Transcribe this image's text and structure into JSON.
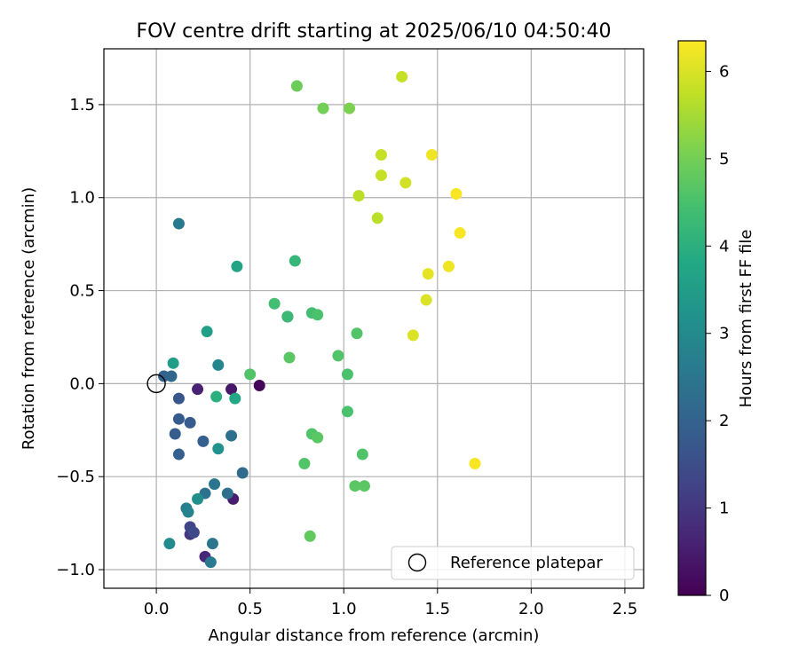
{
  "chart_data": {
    "type": "scatter",
    "title": "FOV centre drift starting at 2025/06/10 04:50:40",
    "xlabel": "Angular distance from reference (arcmin)",
    "ylabel": "Rotation from reference (arcmin)",
    "xlim": [
      -0.28,
      2.6
    ],
    "ylim": [
      -1.1,
      1.8
    ],
    "xticks": [
      0.0,
      0.5,
      1.0,
      1.5,
      2.0,
      2.5
    ],
    "xtick_labels": [
      "0.0",
      "0.5",
      "1.0",
      "1.5",
      "2.0",
      "2.5"
    ],
    "yticks": [
      -1.0,
      -0.5,
      0.0,
      0.5,
      1.0,
      1.5
    ],
    "ytick_labels": [
      "−1.0",
      "−0.5",
      "0.0",
      "0.5",
      "1.0",
      "1.5"
    ],
    "grid": true,
    "colorbar": {
      "label": "Hours from first FF file",
      "colormap": "viridis",
      "range": [
        0,
        6.35
      ],
      "ticks": [
        0,
        1,
        2,
        3,
        4,
        5,
        6
      ],
      "tick_labels": [
        "0",
        "1",
        "2",
        "3",
        "4",
        "5",
        "6"
      ]
    },
    "reference": {
      "name": "Reference platepar",
      "x": 0.0,
      "y": 0.0
    },
    "legend": {
      "position": "lower-right",
      "entries": [
        "Reference platepar"
      ]
    },
    "series": [
      {
        "points": [
          {
            "x": 0.7,
            "y": 0.36,
            "c": 0.05
          },
          {
            "x": 0.55,
            "y": -0.01,
            "c": 0.1
          },
          {
            "x": 0.4,
            "y": -0.03,
            "c": 0.4
          },
          {
            "x": 0.41,
            "y": -0.62,
            "c": 0.5
          },
          {
            "x": 0.22,
            "y": -0.03,
            "c": 0.6
          },
          {
            "x": 0.26,
            "y": -0.93,
            "c": 0.7
          },
          {
            "x": 0.18,
            "y": -0.81,
            "c": 1.0
          },
          {
            "x": 0.18,
            "y": -0.77,
            "c": 1.3
          },
          {
            "x": 0.2,
            "y": -0.8,
            "c": 1.4
          },
          {
            "x": 0.12,
            "y": -0.08,
            "c": 1.7
          },
          {
            "x": 0.12,
            "y": -0.19,
            "c": 1.8
          },
          {
            "x": 0.18,
            "y": -0.21,
            "c": 1.8
          },
          {
            "x": 0.1,
            "y": -0.27,
            "c": 1.85
          },
          {
            "x": 0.12,
            "y": -0.38,
            "c": 1.9
          },
          {
            "x": 0.25,
            "y": -0.31,
            "c": 1.9
          },
          {
            "x": 0.04,
            "y": 0.04,
            "c": 2.0
          },
          {
            "x": 0.08,
            "y": 0.04,
            "c": 2.1
          },
          {
            "x": 0.46,
            "y": -0.48,
            "c": 2.2
          },
          {
            "x": 0.4,
            "y": -0.28,
            "c": 2.3
          },
          {
            "x": 0.38,
            "y": -0.59,
            "c": 2.3
          },
          {
            "x": 0.26,
            "y": -0.59,
            "c": 2.4
          },
          {
            "x": 0.31,
            "y": -0.54,
            "c": 2.5
          },
          {
            "x": 0.3,
            "y": -0.86,
            "c": 2.5
          },
          {
            "x": 0.29,
            "y": -0.96,
            "c": 2.6
          },
          {
            "x": 0.12,
            "y": 0.86,
            "c": 2.6
          },
          {
            "x": 0.16,
            "y": -0.67,
            "c": 2.7
          },
          {
            "x": 0.17,
            "y": -0.69,
            "c": 2.8
          },
          {
            "x": 0.33,
            "y": 0.1,
            "c": 2.9
          },
          {
            "x": 0.07,
            "y": -0.86,
            "c": 3.0
          },
          {
            "x": 0.22,
            "y": -0.62,
            "c": 3.1
          },
          {
            "x": 0.33,
            "y": -0.35,
            "c": 3.2
          },
          {
            "x": 0.09,
            "y": 0.11,
            "c": 3.5
          },
          {
            "x": 0.27,
            "y": 0.28,
            "c": 3.6
          },
          {
            "x": 0.43,
            "y": 0.63,
            "c": 3.7
          },
          {
            "x": 0.42,
            "y": -0.08,
            "c": 3.8
          },
          {
            "x": 0.32,
            "y": -0.07,
            "c": 4.0
          },
          {
            "x": 0.74,
            "y": 0.66,
            "c": 4.2
          },
          {
            "x": 0.7,
            "y": 0.36,
            "c": 4.3
          },
          {
            "x": 0.63,
            "y": 0.43,
            "c": 4.4
          },
          {
            "x": 0.5,
            "y": 0.05,
            "c": 4.6
          },
          {
            "x": 0.83,
            "y": 0.38,
            "c": 4.4
          },
          {
            "x": 0.86,
            "y": 0.37,
            "c": 4.5
          },
          {
            "x": 0.71,
            "y": 0.14,
            "c": 4.7
          },
          {
            "x": 0.97,
            "y": 0.15,
            "c": 4.6
          },
          {
            "x": 1.02,
            "y": 0.05,
            "c": 4.5
          },
          {
            "x": 1.07,
            "y": 0.27,
            "c": 4.6
          },
          {
            "x": 1.02,
            "y": -0.15,
            "c": 4.5
          },
          {
            "x": 0.83,
            "y": -0.27,
            "c": 4.6
          },
          {
            "x": 0.86,
            "y": -0.29,
            "c": 4.7
          },
          {
            "x": 1.1,
            "y": -0.38,
            "c": 4.6
          },
          {
            "x": 0.79,
            "y": -0.43,
            "c": 4.6
          },
          {
            "x": 1.06,
            "y": -0.55,
            "c": 4.7
          },
          {
            "x": 1.11,
            "y": -0.55,
            "c": 4.7
          },
          {
            "x": 0.82,
            "y": -0.82,
            "c": 4.8
          },
          {
            "x": 0.75,
            "y": 1.6,
            "c": 4.9
          },
          {
            "x": 0.89,
            "y": 1.48,
            "c": 5.0
          },
          {
            "x": 1.03,
            "y": 1.48,
            "c": 5.1
          },
          {
            "x": 1.08,
            "y": 1.01,
            "c": 5.7
          },
          {
            "x": 1.18,
            "y": 0.89,
            "c": 5.7
          },
          {
            "x": 1.2,
            "y": 1.23,
            "c": 5.8
          },
          {
            "x": 1.2,
            "y": 1.12,
            "c": 5.8
          },
          {
            "x": 1.31,
            "y": 1.65,
            "c": 5.8
          },
          {
            "x": 1.33,
            "y": 1.08,
            "c": 5.9
          },
          {
            "x": 1.37,
            "y": 0.26,
            "c": 6.0
          },
          {
            "x": 1.44,
            "y": 0.45,
            "c": 6.0
          },
          {
            "x": 1.45,
            "y": 0.59,
            "c": 6.1
          },
          {
            "x": 1.47,
            "y": 1.23,
            "c": 6.2
          },
          {
            "x": 1.56,
            "y": 0.63,
            "c": 6.2
          },
          {
            "x": 1.6,
            "y": 1.02,
            "c": 6.3
          },
          {
            "x": 1.62,
            "y": 0.81,
            "c": 6.3
          },
          {
            "x": 1.7,
            "y": -0.43,
            "c": 6.3
          }
        ]
      }
    ]
  }
}
